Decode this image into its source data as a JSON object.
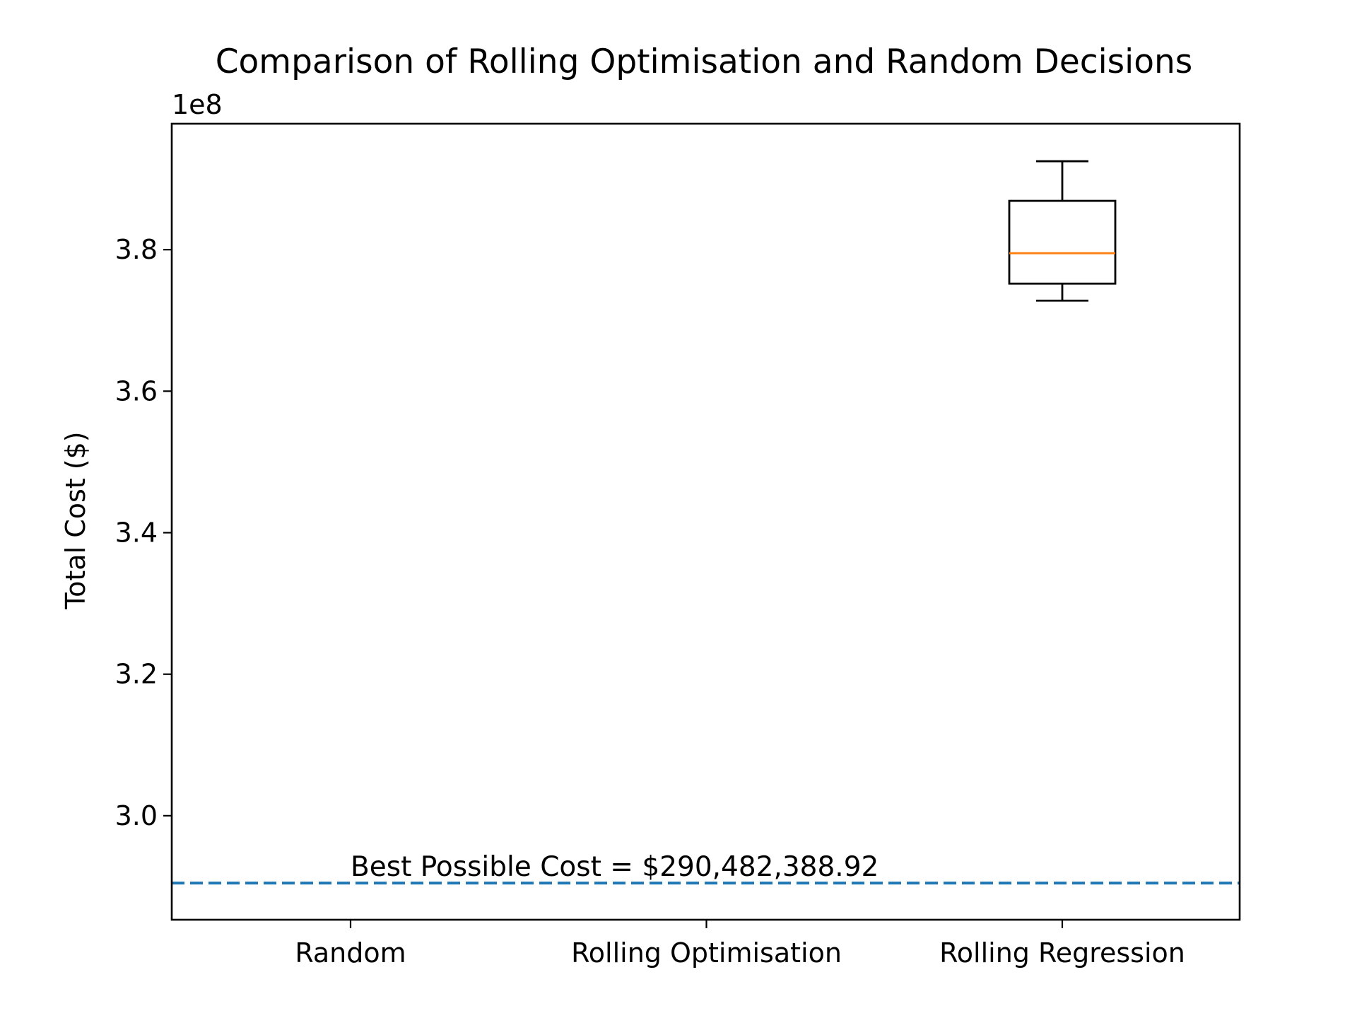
{
  "chart_data": {
    "type": "box",
    "title": "Comparison of Rolling Optimisation and Random Decisions",
    "xlabel": "",
    "ylabel": "Total Cost ($)",
    "y_offset_label": "1e8",
    "y_scale_factor": 100000000,
    "categories": [
      "Random",
      "Rolling Optimisation",
      "Rolling Regression"
    ],
    "boxes": [
      {
        "category": "Rolling Regression",
        "whisker_low": 372800000,
        "q1": 375200000,
        "median": 379500000,
        "q3": 386900000,
        "whisker_high": 392500000
      }
    ],
    "reference_line": {
      "value": 290482388.92,
      "label": "Best Possible Cost = $290,482,388.92",
      "style": "dashed"
    },
    "ylim": [
      285300000,
      397800000
    ],
    "yticks": [
      300000000,
      320000000,
      340000000,
      360000000,
      380000000
    ],
    "ytick_labels": [
      "3.0",
      "3.2",
      "3.4",
      "3.6",
      "3.8"
    ],
    "grid": false,
    "colors": {
      "box": "#000000",
      "median": "#ff7f0e",
      "reference_line": "#1f77b4"
    }
  }
}
